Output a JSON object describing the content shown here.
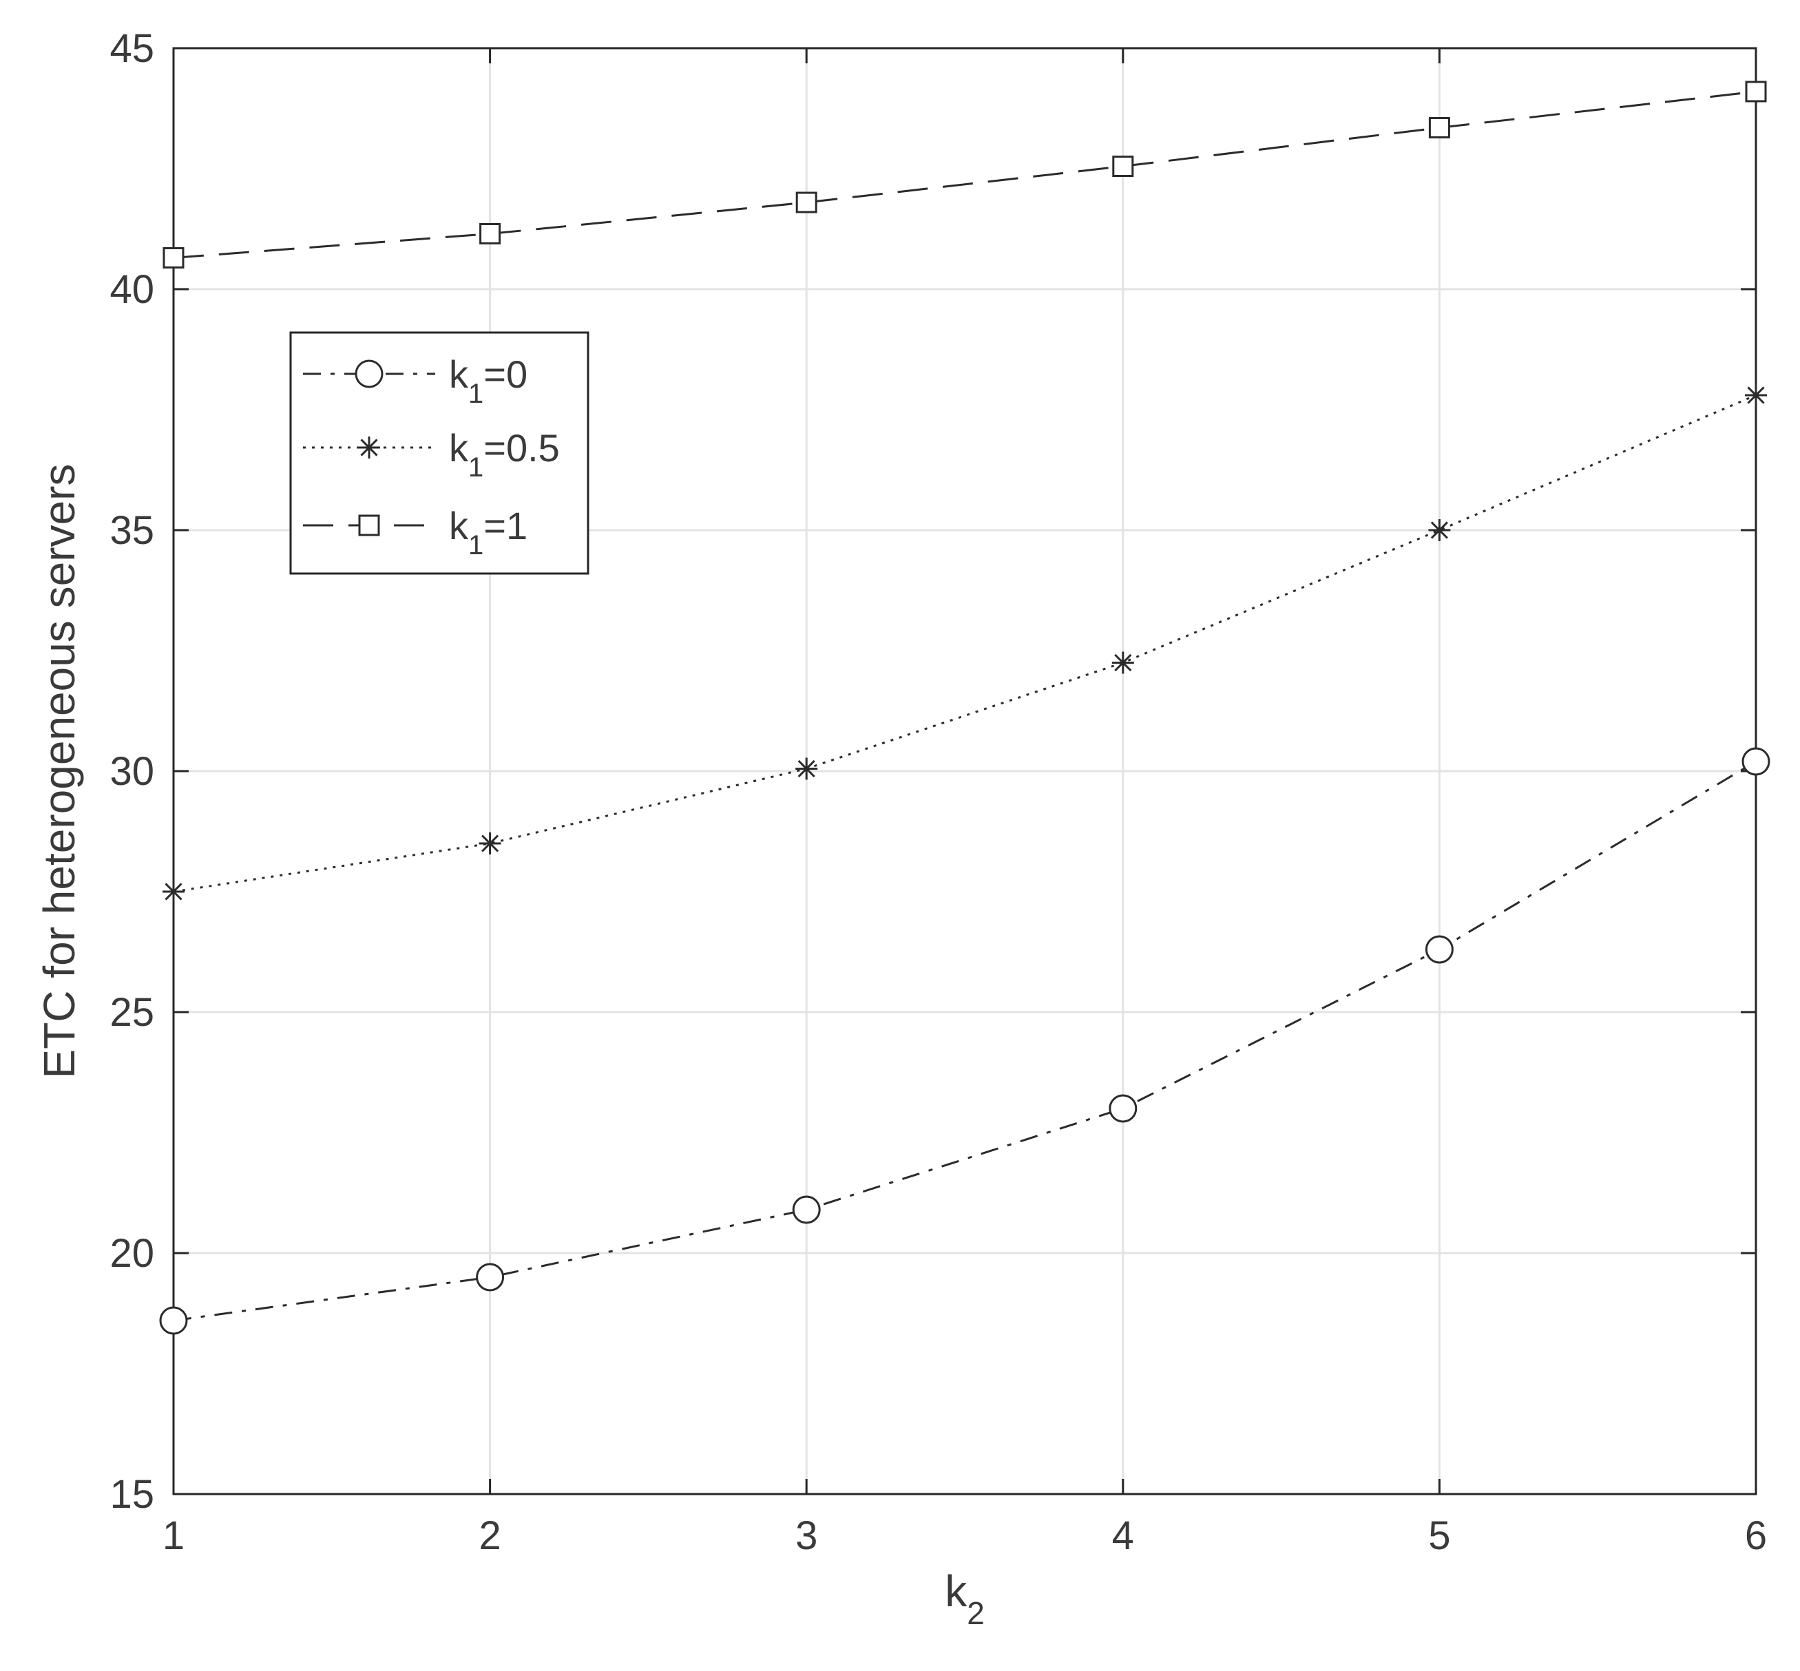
{
  "chart_data": {
    "type": "line",
    "title": "",
    "xlabel": {
      "base": "k",
      "sub": "2"
    },
    "ylabel": "ETC for heterogeneous servers",
    "xlim": [
      1,
      6
    ],
    "ylim": [
      15,
      45
    ],
    "x": [
      1,
      2,
      3,
      4,
      5,
      6
    ],
    "x_ticks": [
      "1",
      "2",
      "3",
      "4",
      "5",
      "6"
    ],
    "y_ticks": [
      "15",
      "20",
      "25",
      "30",
      "35",
      "40",
      "45"
    ],
    "grid": true,
    "legend_position": "upper-left",
    "series": [
      {
        "name": "k1=0",
        "legend": {
          "base": "k",
          "sub": "1",
          "rest": "=0"
        },
        "marker": "circle",
        "line_style": "dash-dot",
        "values": [
          18.6,
          19.5,
          20.9,
          23.0,
          26.3,
          30.2
        ]
      },
      {
        "name": "k1=0.5",
        "legend": {
          "base": "k",
          "sub": "1",
          "rest": "=0.5"
        },
        "marker": "asterisk",
        "line_style": "dotted",
        "values": [
          27.5,
          28.5,
          30.05,
          32.25,
          35.0,
          37.8
        ]
      },
      {
        "name": "k1=1",
        "legend": {
          "base": "k",
          "sub": "1",
          "rest": "=1"
        },
        "marker": "square",
        "line_style": "dashed",
        "values": [
          40.65,
          41.15,
          41.8,
          42.55,
          43.35,
          44.1
        ]
      }
    ],
    "colors": {
      "line": "#2b2b2b",
      "axis": "#262626",
      "grid": "#e3e3e3",
      "text": "#3a3a3a"
    }
  }
}
